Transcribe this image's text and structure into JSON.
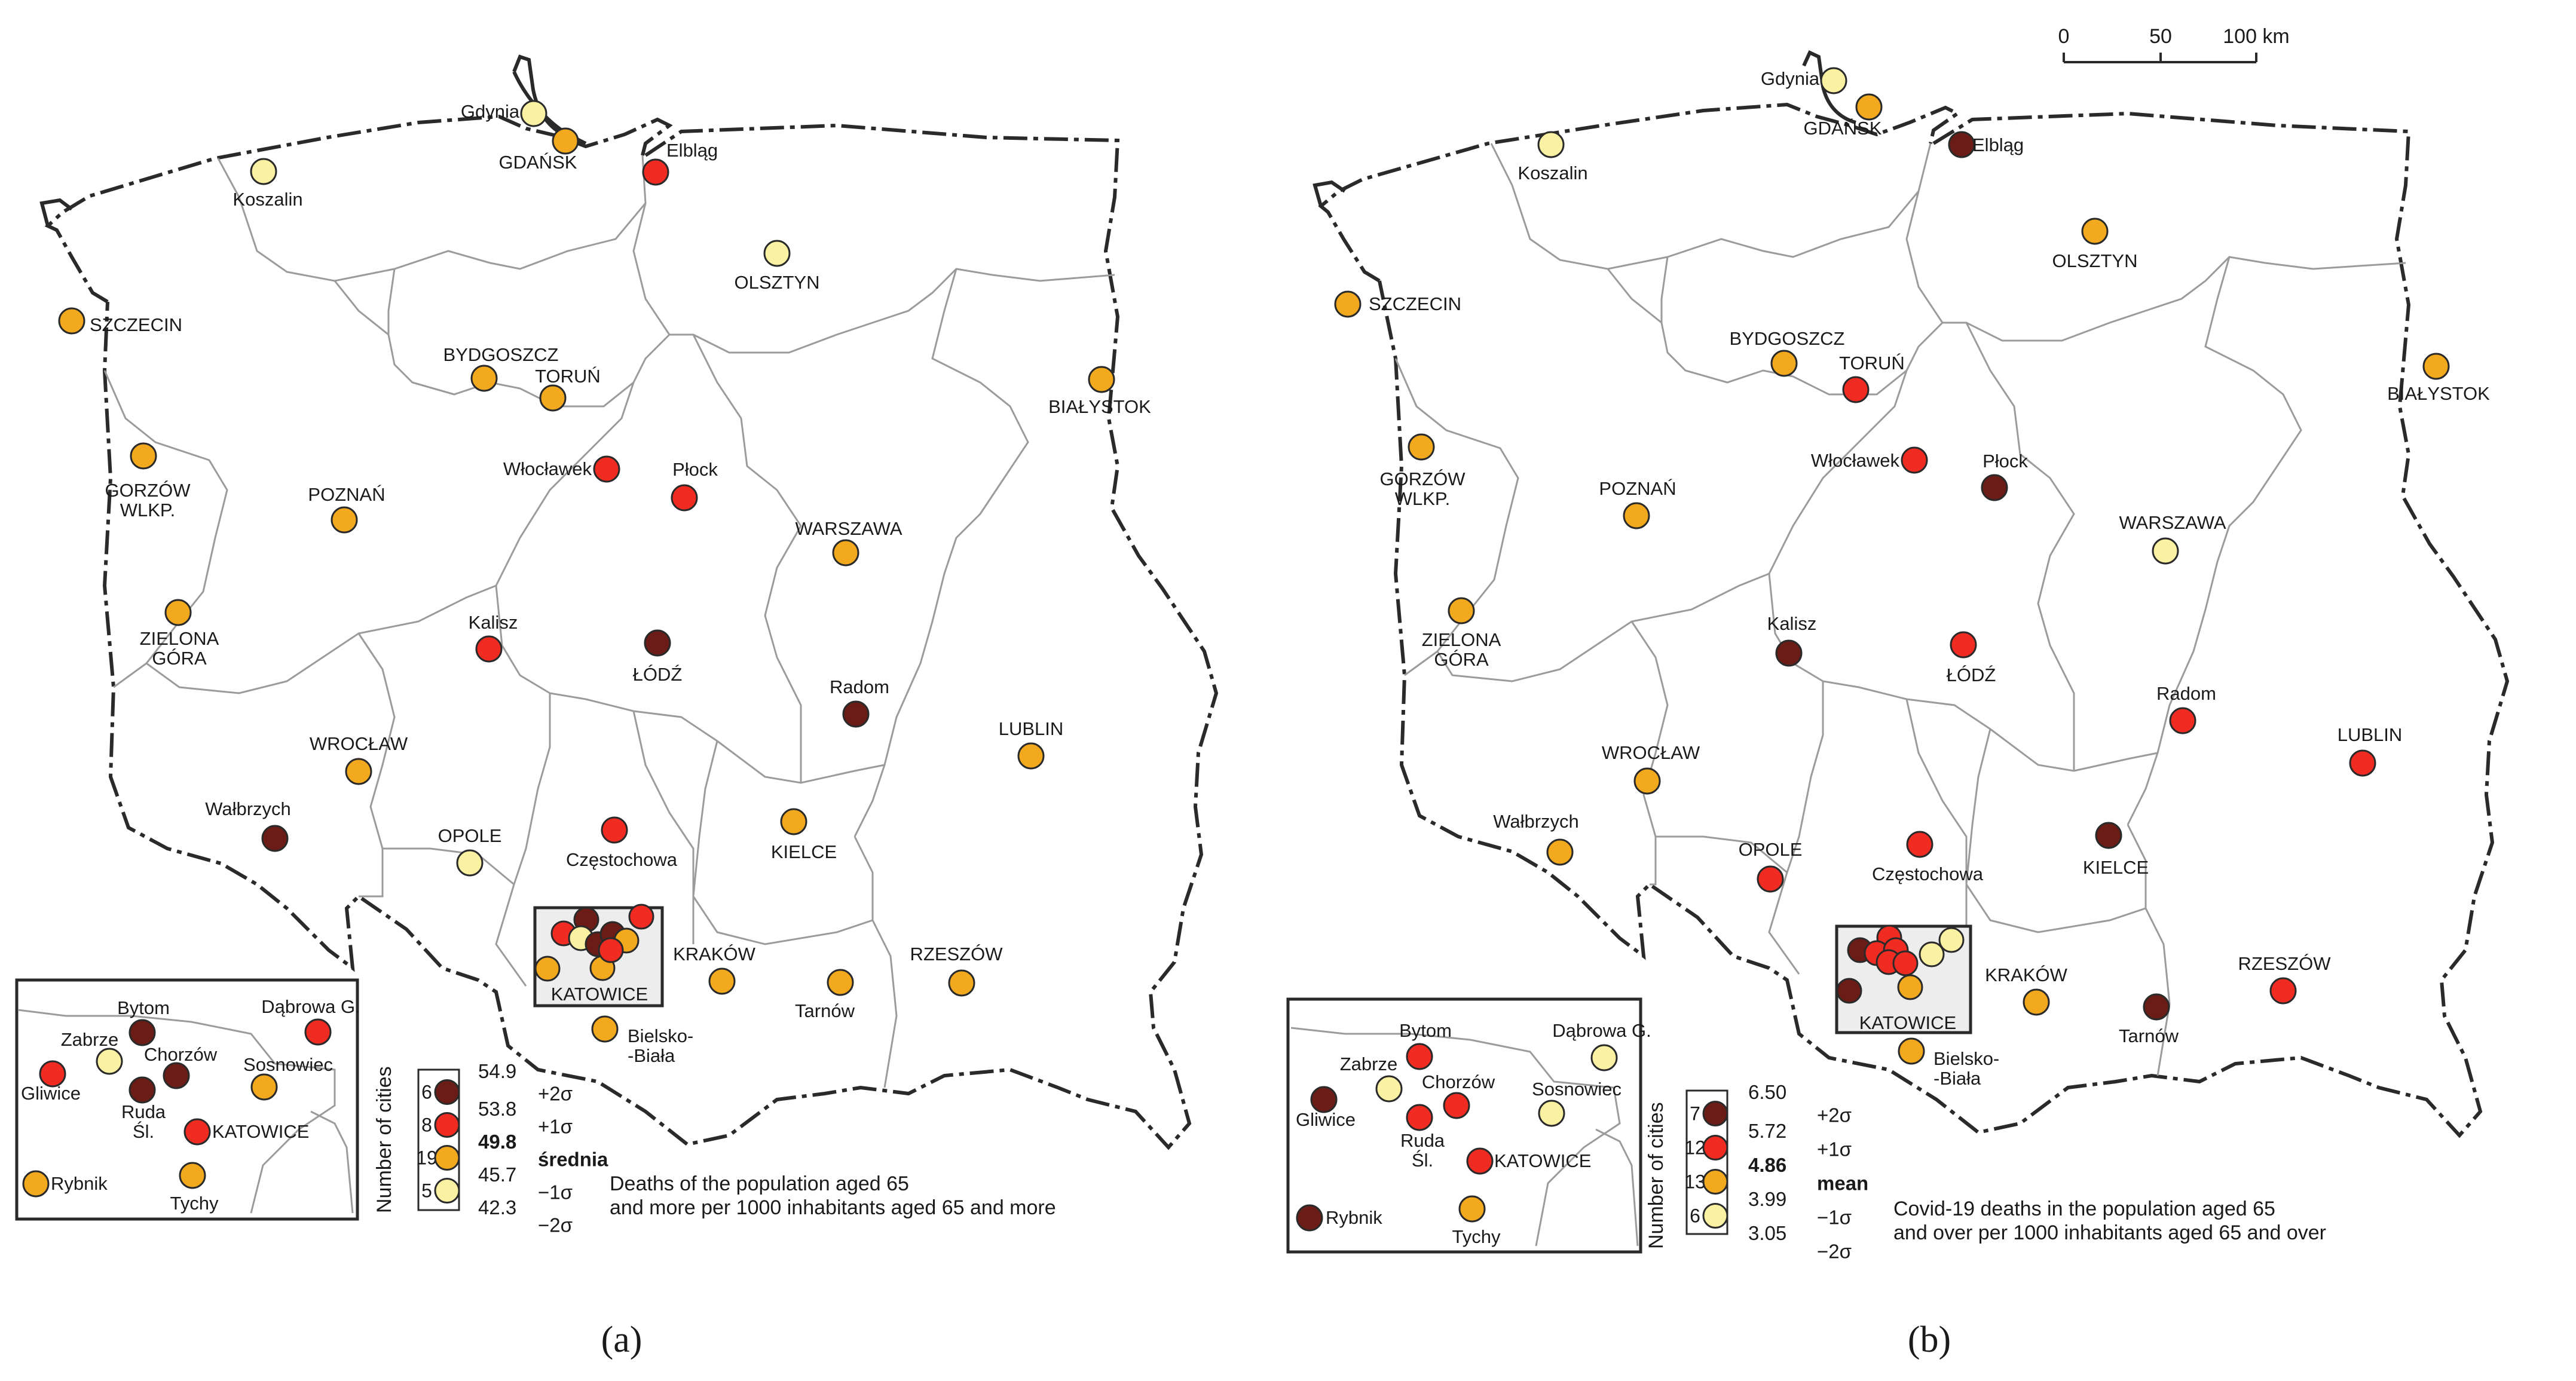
{
  "colors": {
    "very_high": "#6b1c16",
    "high": "#ef2b22",
    "medium": "#f2a91d",
    "low": "#fbf1a3",
    "outline": "#2a2a2a",
    "region_border": "#9b9b9b",
    "background": "#ffffff"
  },
  "maps": [
    {
      "caption": "(a)",
      "legend": {
        "axis_label": "Number of cities",
        "classes": [
          {
            "count": "6",
            "class": "very_high"
          },
          {
            "count": "8",
            "class": "high"
          },
          {
            "count": "19",
            "class": "medium"
          },
          {
            "count": "5",
            "class": "low"
          }
        ],
        "breaks": [
          "54.9",
          "53.8",
          "49.8",
          "45.7",
          "42.3"
        ],
        "sigma_labels": [
          "+2σ",
          "+1σ",
          "średnia",
          "−1σ",
          "−2σ"
        ],
        "title_lines": [
          "Deaths of the population aged 65",
          "and more per 1000 inhabitants aged 65 and more"
        ]
      },
      "cities": [
        {
          "name": "Gdynia",
          "class": "low"
        },
        {
          "name": "GDAŃSK",
          "class": "medium"
        },
        {
          "name": "Elbląg",
          "class": "high"
        },
        {
          "name": "Koszalin",
          "class": "low"
        },
        {
          "name": "SZCZECIN",
          "class": "medium"
        },
        {
          "name": "OLSZTYN",
          "class": "low"
        },
        {
          "name": "BYDGOSZCZ",
          "class": "medium"
        },
        {
          "name": "TORUŃ",
          "class": "medium"
        },
        {
          "name": "BIAŁYSTOK",
          "class": "medium"
        },
        {
          "name": "GORZÓW WLKP.",
          "class": "medium"
        },
        {
          "name": "Włocławek",
          "class": "high"
        },
        {
          "name": "Płock",
          "class": "high"
        },
        {
          "name": "POZNAŃ",
          "class": "medium"
        },
        {
          "name": "WARSZAWA",
          "class": "medium"
        },
        {
          "name": "ZIELONA GÓRA",
          "class": "medium"
        },
        {
          "name": "Kalisz",
          "class": "high"
        },
        {
          "name": "ŁÓDŹ",
          "class": "very_high"
        },
        {
          "name": "Radom",
          "class": "very_high"
        },
        {
          "name": "WROCŁAW",
          "class": "medium"
        },
        {
          "name": "LUBLIN",
          "class": "medium"
        },
        {
          "name": "Wałbrzych",
          "class": "very_high"
        },
        {
          "name": "OPOLE",
          "class": "low"
        },
        {
          "name": "Częstochowa",
          "class": "high"
        },
        {
          "name": "KIELCE",
          "class": "medium"
        },
        {
          "name": "KRAKÓW",
          "class": "medium"
        },
        {
          "name": "RZESZÓW",
          "class": "medium"
        },
        {
          "name": "Tarnów",
          "class": "medium"
        },
        {
          "name": "Bielsko-Biała",
          "class": "medium"
        },
        {
          "name": "KATOWICE",
          "class": "high"
        }
      ],
      "inset": {
        "title": "KATOWICE",
        "cities": [
          {
            "name": "Bytom",
            "class": "very_high"
          },
          {
            "name": "Dąbrowa G.",
            "class": "high"
          },
          {
            "name": "Zabrze",
            "class": "low"
          },
          {
            "name": "Chorzów",
            "class": "very_high"
          },
          {
            "name": "Sosnowiec",
            "class": "medium"
          },
          {
            "name": "Gliwice",
            "class": "high"
          },
          {
            "name": "Ruda Śl.",
            "class": "very_high"
          },
          {
            "name": "KATOWICE",
            "class": "high"
          },
          {
            "name": "Rybnik",
            "class": "medium"
          },
          {
            "name": "Tychy",
            "class": "medium"
          }
        ]
      }
    },
    {
      "caption": "(b)",
      "scale_bar": {
        "ticks": [
          "0",
          "50",
          "100 km"
        ]
      },
      "legend": {
        "axis_label": "Number of cities",
        "classes": [
          {
            "count": "7",
            "class": "very_high"
          },
          {
            "count": "12",
            "class": "high"
          },
          {
            "count": "13",
            "class": "medium"
          },
          {
            "count": "6",
            "class": "low"
          }
        ],
        "breaks": [
          "6.50",
          "5.72",
          "4.86",
          "3.99",
          "3.05"
        ],
        "sigma_labels": [
          "+2σ",
          "+1σ",
          "mean",
          "−1σ",
          "−2σ"
        ],
        "title_lines": [
          "Covid-19 deaths in the population aged 65",
          "and over per 1000 inhabitants aged 65 and over"
        ]
      },
      "cities": [
        {
          "name": "Gdynia",
          "class": "low"
        },
        {
          "name": "GDAŃSK",
          "class": "medium"
        },
        {
          "name": "Elbląg",
          "class": "very_high"
        },
        {
          "name": "Koszalin",
          "class": "low"
        },
        {
          "name": "SZCZECIN",
          "class": "medium"
        },
        {
          "name": "OLSZTYN",
          "class": "medium"
        },
        {
          "name": "BYDGOSZCZ",
          "class": "medium"
        },
        {
          "name": "TORUŃ",
          "class": "high"
        },
        {
          "name": "BIAŁYSTOK",
          "class": "medium"
        },
        {
          "name": "GORZÓW WLKP.",
          "class": "medium"
        },
        {
          "name": "Włocławek",
          "class": "high"
        },
        {
          "name": "Płock",
          "class": "very_high"
        },
        {
          "name": "POZNAŃ",
          "class": "medium"
        },
        {
          "name": "WARSZAWA",
          "class": "low"
        },
        {
          "name": "ZIELONA GÓRA",
          "class": "medium"
        },
        {
          "name": "Kalisz",
          "class": "very_high"
        },
        {
          "name": "ŁÓDŹ",
          "class": "high"
        },
        {
          "name": "Radom",
          "class": "high"
        },
        {
          "name": "WROCŁAW",
          "class": "medium"
        },
        {
          "name": "LUBLIN",
          "class": "high"
        },
        {
          "name": "Wałbrzych",
          "class": "medium"
        },
        {
          "name": "OPOLE",
          "class": "high"
        },
        {
          "name": "Częstochowa",
          "class": "high"
        },
        {
          "name": "KIELCE",
          "class": "very_high"
        },
        {
          "name": "KRAKÓW",
          "class": "medium"
        },
        {
          "name": "RZESZÓW",
          "class": "high"
        },
        {
          "name": "Tarnów",
          "class": "very_high"
        },
        {
          "name": "Bielsko-Biała",
          "class": "medium"
        },
        {
          "name": "KATOWICE",
          "class": "high"
        }
      ],
      "inset": {
        "title": "KATOWICE",
        "cities": [
          {
            "name": "Bytom",
            "class": "high"
          },
          {
            "name": "Dąbrowa G.",
            "class": "low"
          },
          {
            "name": "Zabrze",
            "class": "low"
          },
          {
            "name": "Chorzów",
            "class": "high"
          },
          {
            "name": "Sosnowiec",
            "class": "low"
          },
          {
            "name": "Gliwice",
            "class": "very_high"
          },
          {
            "name": "Ruda Śl.",
            "class": "high"
          },
          {
            "name": "KATOWICE",
            "class": "high"
          },
          {
            "name": "Rybnik",
            "class": "very_high"
          },
          {
            "name": "Tychy",
            "class": "medium"
          }
        ]
      }
    }
  ]
}
